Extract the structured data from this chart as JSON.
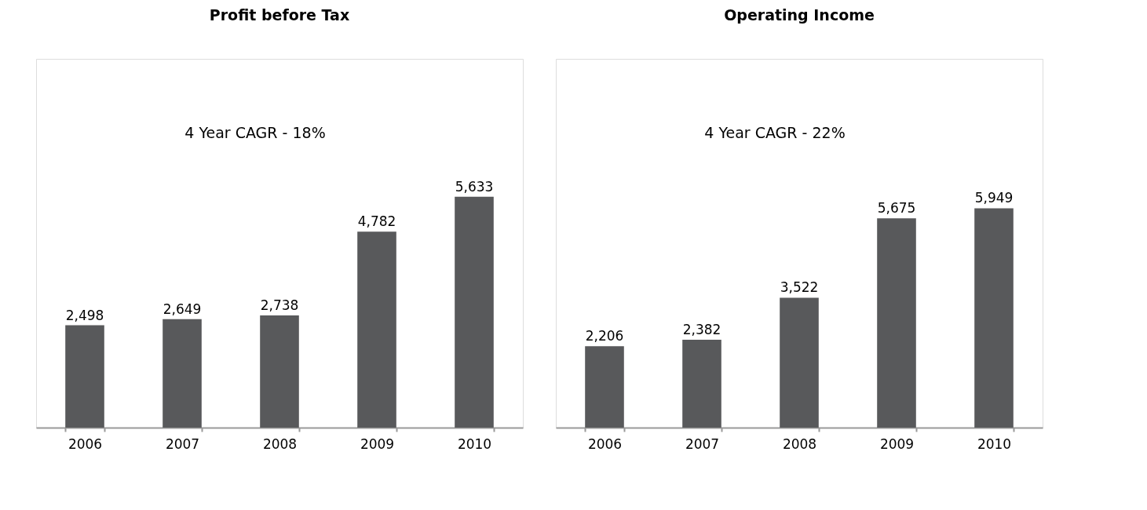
{
  "chart_data": [
    {
      "type": "bar",
      "title": "Profit before Tax",
      "categories": [
        "2006",
        "2007",
        "2008",
        "2009",
        "2010"
      ],
      "values": [
        2498,
        2649,
        2738,
        4782,
        5633
      ],
      "color": "#58595b",
      "data_labels": true,
      "value_labels": [
        "2,498",
        "2,649",
        "2,738",
        "4,782",
        "5,633"
      ],
      "annotations": [
        "4 Year CAGR - 18%"
      ]
    },
    {
      "type": "bar",
      "title": "Operating Income",
      "categories": [
        "2006",
        "2007",
        "2008",
        "2009",
        "2010"
      ],
      "values": [
        2206,
        2382,
        3522,
        5675,
        5949
      ],
      "color": "#58595b",
      "data_labels": true,
      "value_labels": [
        "2,206",
        "2,382",
        "3,522",
        "5,675",
        "5,949"
      ],
      "annotations": [
        "4 Year CAGR - 22%"
      ]
    }
  ]
}
